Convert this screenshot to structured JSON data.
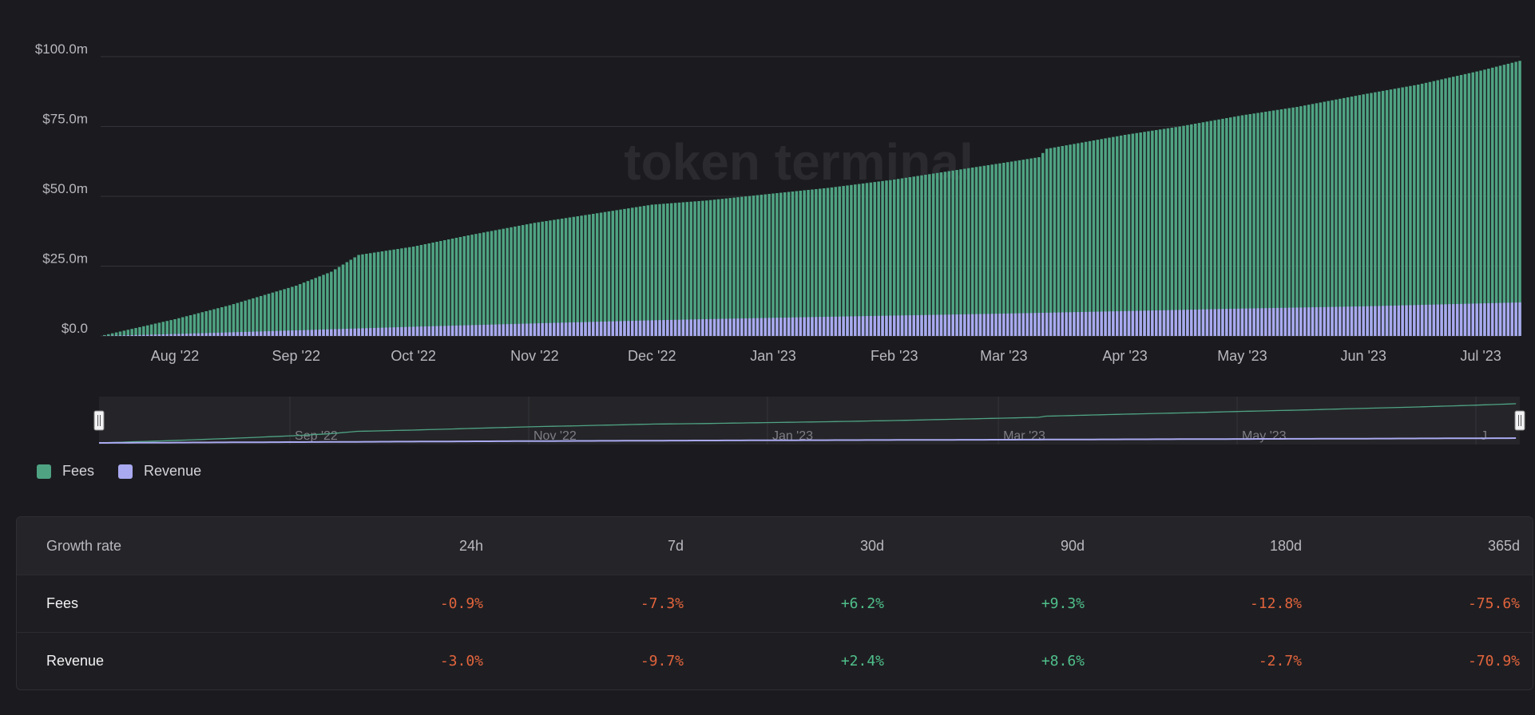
{
  "chart_data": {
    "type": "bar",
    "stacked": true,
    "watermark": "token terminal",
    "x_start": "2022-07-13",
    "x_end": "2023-07-11",
    "x_tick_labels": [
      "Aug '22",
      "Sep '22",
      "Oct '22",
      "Nov '22",
      "Dec '22",
      "Jan '23",
      "Feb '23",
      "Mar '23",
      "Apr '23",
      "May '23",
      "Jun '23",
      "Jul '23"
    ],
    "y_tick_labels": [
      "$0.0",
      "$25.0m",
      "$50.0m",
      "$75.0m",
      "$100.0m"
    ],
    "ylim": [
      0,
      100
    ],
    "y_unit": "$m",
    "grid": true,
    "series": [
      {
        "name": "Fees",
        "color": "#4fa383",
        "points": [
          [
            "2022-07-13",
            0.0
          ],
          [
            "2022-08-01",
            6.0
          ],
          [
            "2022-08-15",
            11.0
          ],
          [
            "2022-09-01",
            18.0
          ],
          [
            "2022-09-10",
            23.0
          ],
          [
            "2022-09-17",
            29.0
          ],
          [
            "2022-10-01",
            32.0
          ],
          [
            "2022-10-15",
            36.0
          ],
          [
            "2022-11-01",
            40.5
          ],
          [
            "2022-11-15",
            43.5
          ],
          [
            "2022-12-01",
            47.0
          ],
          [
            "2022-12-15",
            48.5
          ],
          [
            "2023-01-01",
            51.0
          ],
          [
            "2023-01-15",
            53.0
          ],
          [
            "2023-02-01",
            56.0
          ],
          [
            "2023-02-15",
            59.0
          ],
          [
            "2023-03-01",
            62.0
          ],
          [
            "2023-03-10",
            64.0
          ],
          [
            "2023-03-12",
            67.0
          ],
          [
            "2023-04-01",
            72.0
          ],
          [
            "2023-04-15",
            75.0
          ],
          [
            "2023-05-01",
            79.0
          ],
          [
            "2023-05-15",
            82.0
          ],
          [
            "2023-06-01",
            86.5
          ],
          [
            "2023-06-15",
            90.0
          ],
          [
            "2023-07-01",
            95.0
          ],
          [
            "2023-07-11",
            98.5
          ]
        ]
      },
      {
        "name": "Revenue",
        "color": "#a9a9f0",
        "points": [
          [
            "2022-07-13",
            0.0
          ],
          [
            "2022-08-01",
            0.7
          ],
          [
            "2022-09-01",
            2.0
          ],
          [
            "2022-10-01",
            3.3
          ],
          [
            "2022-11-01",
            4.5
          ],
          [
            "2022-12-01",
            5.6
          ],
          [
            "2023-01-01",
            6.5
          ],
          [
            "2023-02-01",
            7.3
          ],
          [
            "2023-03-01",
            8.0
          ],
          [
            "2023-04-01",
            8.9
          ],
          [
            "2023-05-01",
            9.8
          ],
          [
            "2023-06-01",
            10.6
          ],
          [
            "2023-07-11",
            12.0
          ]
        ]
      }
    ],
    "navigator_tick_labels": [
      "Sep '22",
      "Nov '22",
      "Jan '23",
      "Mar '23",
      "May '23",
      "J"
    ]
  },
  "legend": [
    {
      "label": "Fees",
      "color": "#4fa383"
    },
    {
      "label": "Revenue",
      "color": "#a9a9f0"
    }
  ],
  "growth_table": {
    "header": {
      "label": "Growth rate",
      "periods": [
        "24h",
        "7d",
        "30d",
        "90d",
        "180d",
        "365d"
      ]
    },
    "rows": [
      {
        "label": "Fees",
        "values": [
          "-0.9%",
          "-7.3%",
          "+6.2%",
          "+9.3%",
          "-12.8%",
          "-75.6%"
        ]
      },
      {
        "label": "Revenue",
        "values": [
          "-3.0%",
          "-9.7%",
          "+2.4%",
          "+8.6%",
          "-2.7%",
          "-70.9%"
        ]
      }
    ]
  }
}
